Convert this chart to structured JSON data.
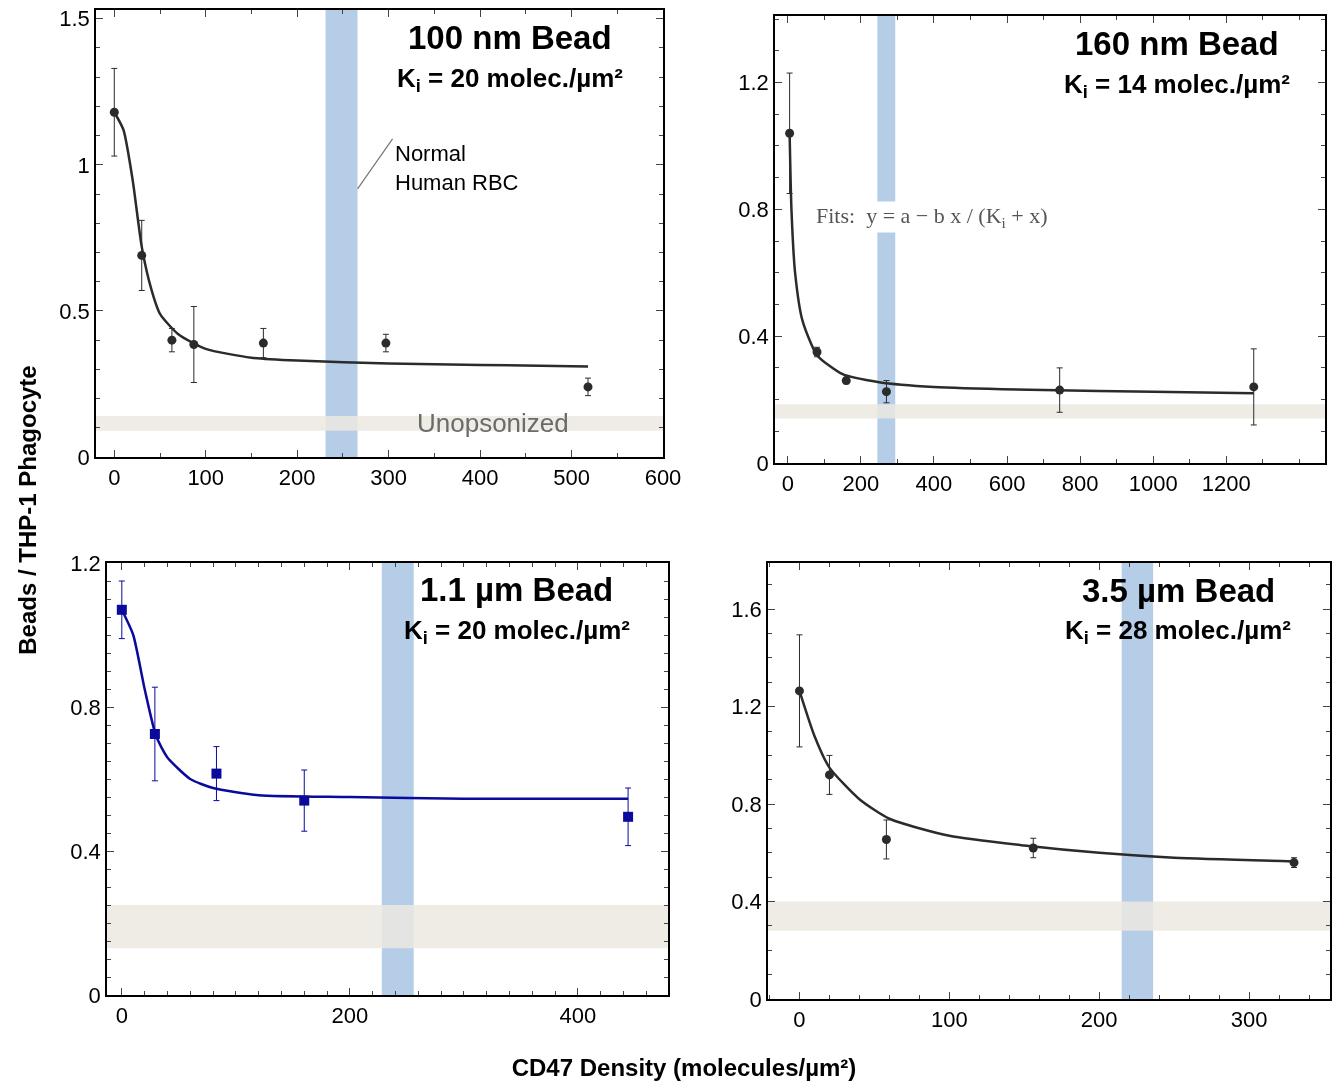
{
  "chart_data": [
    {
      "type": "scatter",
      "title": "100 nm Bead",
      "subtitle": "K$_{i}$ = 20 molec./µm²",
      "ylabel": "Beads / THP-1 Phagocyte",
      "xlim": [
        -20,
        600
      ],
      "xticks": [
        0,
        100,
        200,
        300,
        400,
        500,
        600
      ],
      "ylim": [
        0,
        1.53
      ],
      "yticks": [
        0,
        0.5,
        1,
        1.5
      ],
      "series": [
        {
          "marker": "circle",
          "color": "#2b2b2b",
          "x": [
            0,
            30,
            63,
            87,
            163,
            297,
            518
          ],
          "values": [
            1.18,
            0.69,
            0.4,
            0.385,
            0.39,
            0.39,
            0.24
          ],
          "errors": [
            0.15,
            0.12,
            0.04,
            0.13,
            0.05,
            0.03,
            0.03
          ]
        },
        {
          "type": "line",
          "color": "#2b2b2b",
          "x": [
            0,
            10,
            20,
            30,
            40,
            50,
            70,
            100,
            150,
            200,
            300,
            400,
            518
          ],
          "values": [
            1.18,
            1.12,
            0.95,
            0.72,
            0.58,
            0.49,
            0.42,
            0.37,
            0.34,
            0.33,
            0.32,
            0.315,
            0.31
          ]
        }
      ],
      "bands": [
        {
          "axis": "x",
          "from": 231,
          "to": 266,
          "label": "Normal\nHuman RBC",
          "color": "#a9c4e4"
        },
        {
          "axis": "y",
          "from": 0.09,
          "to": 0.14,
          "label": "Unopsonized",
          "color": "#ece9e0"
        }
      ]
    },
    {
      "type": "scatter",
      "title": "160 nm Bead",
      "subtitle": "K$_{i}$ = 14 molec./µm²",
      "xlim": [
        -35,
        1470
      ],
      "xticks": [
        0,
        200,
        400,
        600,
        800,
        1000,
        1200
      ],
      "ylim": [
        0,
        1.41
      ],
      "yticks": [
        0,
        0.4,
        0.8,
        1.2
      ],
      "annotations": [
        "Fits:  y = a − b x / (K$_{i}$ + x)"
      ],
      "series": [
        {
          "marker": "circle",
          "color": "#2b2b2b",
          "x": [
            5,
            80,
            160,
            270,
            744,
            1275
          ],
          "values": [
            1.04,
            0.35,
            0.26,
            0.225,
            0.23,
            0.24
          ],
          "errors": [
            0.19,
            0.015,
            0.01,
            0.035,
            0.07,
            0.12
          ]
        },
        {
          "type": "line",
          "color": "#2b2b2b",
          "x": [
            5,
            10,
            20,
            40,
            80,
            150,
            250,
            400,
            700,
            1000,
            1275
          ],
          "values": [
            1.04,
            0.8,
            0.6,
            0.45,
            0.34,
            0.28,
            0.255,
            0.24,
            0.23,
            0.225,
            0.22
          ]
        }
      ],
      "bands": [
        {
          "axis": "x",
          "from": 245,
          "to": 294,
          "color": "#a9c4e4"
        },
        {
          "axis": "y",
          "from": 0.14,
          "to": 0.185,
          "color": "#ece9e0"
        }
      ]
    },
    {
      "type": "scatter",
      "title": "1.1 µm Bead",
      "subtitle": "K$_{i}$ = 20 molec./µm²",
      "xlabel": "CD47 Density (molecules/µm²)",
      "xlim": [
        -13,
        479
      ],
      "xticks": [
        0,
        200,
        400
      ],
      "ylim": [
        0,
        1.2
      ],
      "yticks": [
        0,
        0.4,
        0.8,
        1.2
      ],
      "series": [
        {
          "marker": "square",
          "color": "#0a0a9c",
          "x": [
            0,
            29,
            83,
            160,
            444
          ],
          "values": [
            1.07,
            0.725,
            0.615,
            0.54,
            0.495
          ],
          "errors": [
            0.08,
            0.13,
            0.075,
            0.085,
            0.08
          ]
        },
        {
          "type": "line",
          "color": "#0a0a9c",
          "x": [
            0,
            10,
            20,
            30,
            40,
            60,
            80,
            120,
            200,
            300,
            444
          ],
          "values": [
            1.07,
            1.0,
            0.85,
            0.72,
            0.66,
            0.6,
            0.575,
            0.555,
            0.55,
            0.545,
            0.545
          ]
        }
      ],
      "bands": [
        {
          "axis": "x",
          "from": 228,
          "to": 256,
          "color": "#a9c4e4"
        },
        {
          "axis": "y",
          "from": 0.13,
          "to": 0.25,
          "color": "#ece9e0"
        }
      ]
    },
    {
      "type": "scatter",
      "title": "3.5 µm Bead",
      "subtitle": "K$_{i}$ = 28 molec./µm²",
      "xlim": [
        -21,
        354
      ],
      "xticks": [
        0,
        100,
        200,
        300
      ],
      "ylim": [
        0,
        1.79
      ],
      "yticks": [
        0,
        0.4,
        0.8,
        1.2,
        1.6
      ],
      "series": [
        {
          "marker": "circle",
          "color": "#2b2b2b",
          "x": [
            0,
            20,
            58,
            156,
            330
          ],
          "values": [
            1.265,
            0.92,
            0.655,
            0.62,
            0.56
          ],
          "errors": [
            0.23,
            0.08,
            0.08,
            0.04,
            0.02
          ]
        },
        {
          "type": "line",
          "color": "#2b2b2b",
          "x": [
            0,
            10,
            20,
            40,
            60,
            100,
            150,
            200,
            250,
            330
          ],
          "values": [
            1.265,
            1.08,
            0.95,
            0.82,
            0.74,
            0.67,
            0.63,
            0.6,
            0.58,
            0.565
          ]
        }
      ],
      "bands": [
        {
          "axis": "x",
          "from": 215,
          "to": 236,
          "color": "#a9c4e4"
        },
        {
          "axis": "y",
          "from": 0.28,
          "to": 0.4,
          "color": "#ece9e0"
        }
      ]
    }
  ]
}
